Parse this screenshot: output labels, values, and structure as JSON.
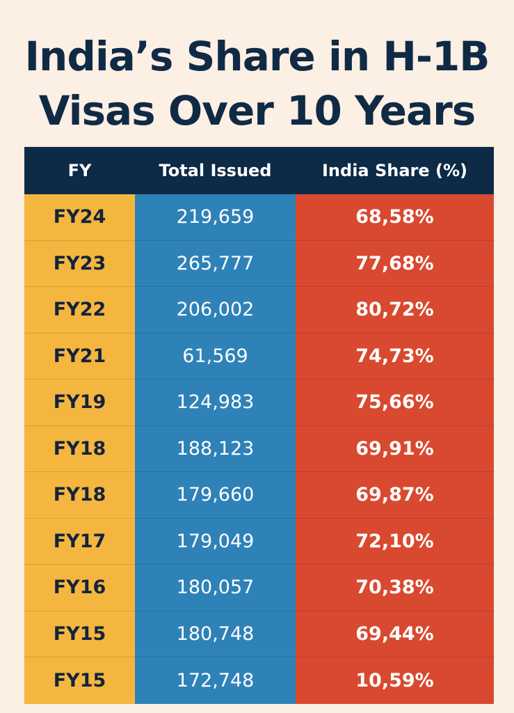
{
  "title_line1": "India’s Share in H-1B",
  "title_line2": "Visas Over 10 Years",
  "chart_data": {
    "type": "table",
    "title": "India’s Share in H-1B Visas Over 10 Years",
    "columns": [
      "FY",
      "Total Issued",
      "India Share (%)"
    ],
    "rows": [
      [
        "FY24",
        "219,659",
        "68,58%"
      ],
      [
        "FY23",
        "265,777",
        "77,68%"
      ],
      [
        "FY22",
        "206,002",
        "80,72%"
      ],
      [
        "FY21",
        "61,569",
        "74,73%"
      ],
      [
        "FY19",
        "124,983",
        "75,66%"
      ],
      [
        "FY18",
        "188,123",
        "69,91%"
      ],
      [
        "FY18",
        "179,660",
        "69,87%"
      ],
      [
        "FY17",
        "179,049",
        "72,10%"
      ],
      [
        "FY16",
        "180,057",
        "70,38%"
      ],
      [
        "FY15",
        "180,748",
        "69,44%"
      ],
      [
        "FY15",
        "172,748",
        "10,59%"
      ]
    ],
    "colors": {
      "header": "#0d2a47",
      "fy_column": "#f4b63f",
      "total_column": "#2e82b8",
      "share_column": "#d8492f"
    }
  }
}
